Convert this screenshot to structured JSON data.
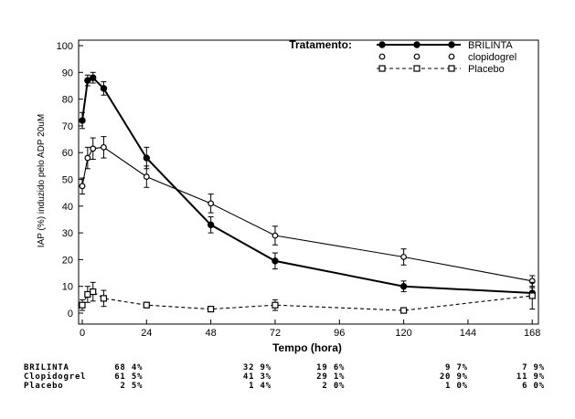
{
  "chart_data": {
    "type": "line",
    "title": "",
    "xlabel": "Tempo (hora)",
    "ylabel": "IAP (%) induzido pelo ADP 20uM",
    "xlim": [
      0,
      170
    ],
    "ylim": [
      0,
      100
    ],
    "xticks": [
      0,
      24,
      48,
      72,
      96,
      120,
      144,
      168
    ],
    "yticks": [
      0,
      10,
      20,
      30,
      40,
      50,
      60,
      70,
      80,
      90,
      100
    ],
    "grid": false,
    "legend": {
      "title": "Tratamento:",
      "placement": "top-right"
    },
    "series": [
      {
        "name": "BRILINTA",
        "marker": "filled-circle",
        "line": "solid-thick",
        "x": [
          0,
          2,
          4,
          8,
          24,
          48,
          72,
          120,
          168
        ],
        "y": [
          72,
          87,
          88,
          84,
          58,
          33,
          19.5,
          10,
          7.5
        ],
        "err": [
          3,
          2,
          2,
          2.5,
          4,
          3,
          3,
          2,
          2
        ]
      },
      {
        "name": "clopidogrel",
        "marker": "open-circle",
        "line": "solid",
        "x": [
          0,
          2,
          4,
          8,
          24,
          48,
          72,
          120,
          168
        ],
        "y": [
          47.5,
          58,
          61.5,
          62,
          51,
          41,
          29,
          21,
          12
        ],
        "err": [
          3,
          4,
          4,
          4,
          4,
          3.5,
          3.5,
          3,
          2
        ]
      },
      {
        "name": "Placebo",
        "marker": "open-square",
        "line": "dashed",
        "x": [
          0,
          2,
          4,
          8,
          24,
          48,
          72,
          120,
          168
        ],
        "y": [
          3,
          7,
          8,
          5.5,
          3,
          1.5,
          3,
          1,
          6.5
        ],
        "err": [
          2,
          3,
          3.5,
          3,
          1,
          0.5,
          2,
          0.5,
          5
        ]
      }
    ]
  },
  "summary_table": {
    "rows": [
      {
        "label": "BRILINTA",
        "values": [
          "68 4%",
          "32 9%",
          "19 6%",
          "9 7%",
          "7 9%"
        ]
      },
      {
        "label": "Clopidogrel",
        "values": [
          "61 5%",
          "41 3%",
          "29 1%",
          "20 9%",
          "11 9%"
        ]
      },
      {
        "label": "Placebo",
        "values": [
          "2 5%",
          "1 4%",
          "2 0%",
          "1 0%",
          "6 0%"
        ]
      }
    ]
  }
}
